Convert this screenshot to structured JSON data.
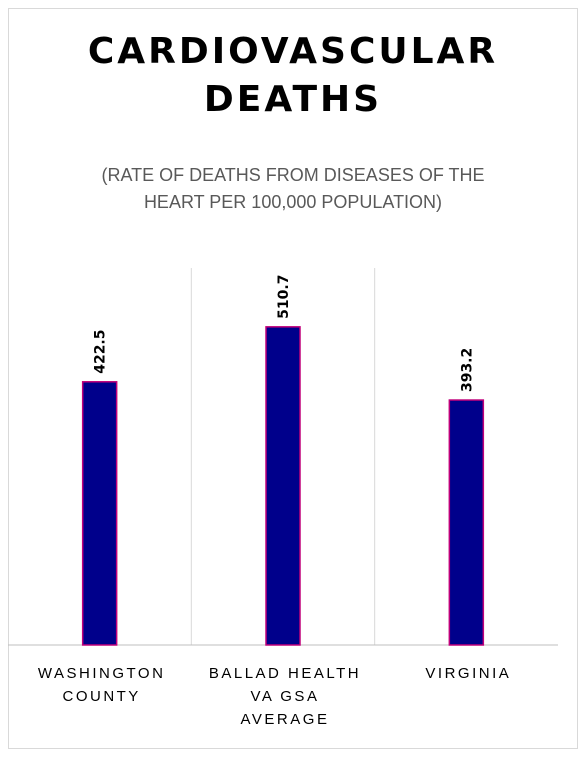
{
  "chart_data": {
    "type": "bar",
    "title_lines": [
      "CARDIOVASCULAR",
      "DEATHS"
    ],
    "subtitle_lines": [
      "(RATE OF DEATHS FROM DISEASES OF THE",
      "HEART PER 100,000 POPULATION)"
    ],
    "categories": [
      {
        "lines": [
          "WASHINGTON",
          "COUNTY"
        ]
      },
      {
        "lines": [
          "BALLAD HEALTH",
          "VA GSA",
          "AVERAGE"
        ]
      },
      {
        "lines": [
          "VIRGINIA"
        ]
      }
    ],
    "values": [
      422.5,
      510.7,
      393.2
    ],
    "value_labels": [
      "422.5",
      "510.7",
      "393.2"
    ],
    "ylim": [
      0,
      600
    ],
    "grid": "vertical category separators",
    "legend": "none",
    "colors": {
      "bar_fill": "#00008B",
      "bar_stroke": "#C0007A",
      "gridline": "#d9d9d9",
      "axis": "#bfbfbf"
    }
  }
}
